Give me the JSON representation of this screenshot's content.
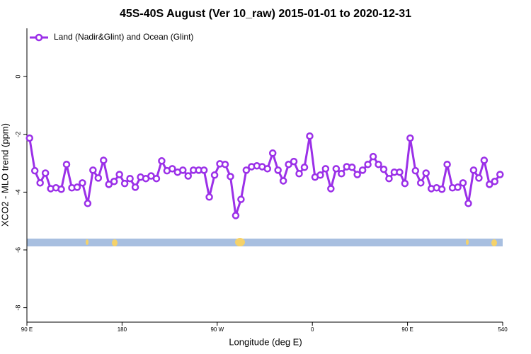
{
  "chart_data": {
    "type": "line",
    "title": "45S-40S August (Ver 10_raw)   2015-01-01 to 2020-12-31",
    "xlabel": "Longitude (deg E)",
    "ylabel": "XCO2 - MLO trend (ppm)",
    "x": [
      92.5,
      97.5,
      102.5,
      107.5,
      112.5,
      117.5,
      122.5,
      127.5,
      132.5,
      137.5,
      142.5,
      147.5,
      152.5,
      157.5,
      162.5,
      167.5,
      172.5,
      177.5,
      182.5,
      187.5,
      192.5,
      197.5,
      202.5,
      207.5,
      212.5,
      217.5,
      222.5,
      227.5,
      232.5,
      237.5,
      242.5,
      247.5,
      252.5,
      257.5,
      262.5,
      267.5,
      272.5,
      277.5,
      282.5,
      287.5,
      292.5,
      297.5,
      302.5,
      307.5,
      312.5,
      317.5,
      322.5,
      327.5,
      332.5,
      337.5,
      342.5,
      347.5,
      352.5,
      357.5,
      362.5,
      367.5,
      372.5,
      377.5,
      382.5,
      387.5,
      392.5,
      397.5,
      402.5,
      407.5,
      412.5,
      417.5,
      422.5,
      427.5,
      432.5,
      437.5,
      442.5,
      447.5,
      452.5,
      457.5,
      462.5,
      467.5,
      472.5,
      477.5,
      482.5,
      487.5,
      492.5,
      497.5,
      502.5,
      507.5,
      512.5,
      517.5,
      522.5,
      527.5,
      532.5,
      537.5
    ],
    "series": [
      {
        "name": "Land (Nadir&Glint) and Ocean (Glint)",
        "color": "#9b30e8",
        "values": [
          -2.13,
          -3.26,
          -3.68,
          -3.34,
          -3.88,
          -3.85,
          -3.9,
          -3.04,
          -3.85,
          -3.83,
          -3.68,
          -4.39,
          -3.24,
          -3.51,
          -2.9,
          -3.73,
          -3.63,
          -3.39,
          -3.7,
          -3.53,
          -3.83,
          -3.48,
          -3.53,
          -3.44,
          -3.53,
          -2.92,
          -3.26,
          -3.19,
          -3.31,
          -3.24,
          -3.44,
          -3.24,
          -3.24,
          -3.24,
          -4.17,
          -3.41,
          -3.02,
          -3.04,
          -3.46,
          -4.81,
          -4.25,
          -3.24,
          -3.12,
          -3.09,
          -3.12,
          -3.19,
          -2.65,
          -3.24,
          -3.61,
          -3.04,
          -2.94,
          -3.36,
          -3.14,
          -2.06,
          -3.48,
          -3.41,
          -3.19,
          -3.88,
          -3.19,
          -3.36,
          -3.12,
          -3.14,
          -3.39,
          -3.24,
          -3.04,
          -2.77,
          -3.04,
          -3.21,
          -3.53,
          -3.31,
          -3.31,
          -3.7,
          -2.13,
          -3.26,
          -3.68,
          -3.34,
          -3.88,
          -3.85,
          -3.9,
          -3.04,
          -3.85,
          -3.83,
          -3.68,
          -4.39,
          -3.24,
          -3.51,
          -2.9,
          -3.73,
          -3.63,
          -3.39
        ]
      }
    ],
    "xlim": [
      90,
      540
    ],
    "xticks": [
      {
        "value": 90,
        "label": "90 E"
      },
      180,
      {
        "value": 270,
        "label": "90 W"
      },
      {
        "value": 360,
        "label": "0"
      },
      {
        "value": 450,
        "label": "90 E"
      },
      540
    ],
    "ylim": [
      -8.5,
      1.67
    ],
    "yticks": [
      0,
      -2,
      -4,
      -6,
      -8
    ],
    "legend": "top-left"
  }
}
